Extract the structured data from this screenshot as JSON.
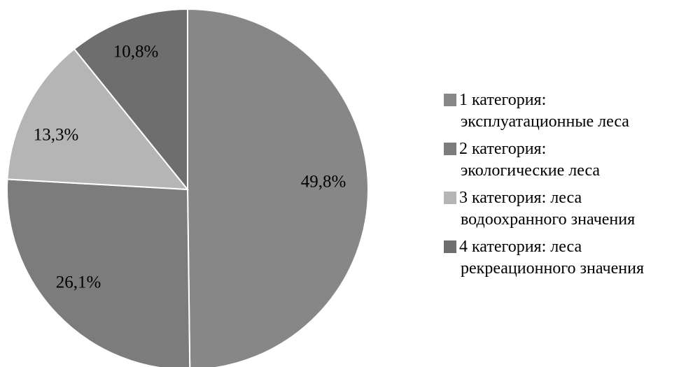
{
  "chart_data": {
    "type": "pie",
    "start_angle": "12 o'clock",
    "direction": "clockwise",
    "legend_position": "right",
    "slices": [
      {
        "label_line1": "1 категория:",
        "label_line2": "эксплуатационные леса",
        "value": 49.8,
        "value_label": "49,8%",
        "color": "#878787"
      },
      {
        "label_line1": "2 категория:",
        "label_line2": "экологические леса",
        "value": 26.1,
        "value_label": "26,1%",
        "color": "#7c7c7c"
      },
      {
        "label_line1": "3 категория: леса",
        "label_line2": "водоохранного значения",
        "value": 13.3,
        "value_label": "13,3%",
        "color": "#b5b5b5"
      },
      {
        "label_line1": "4 категория: леса",
        "label_line2": "рекреационного значения",
        "value": 10.8,
        "value_label": "10,8%",
        "color": "#6e6e6e"
      }
    ]
  }
}
